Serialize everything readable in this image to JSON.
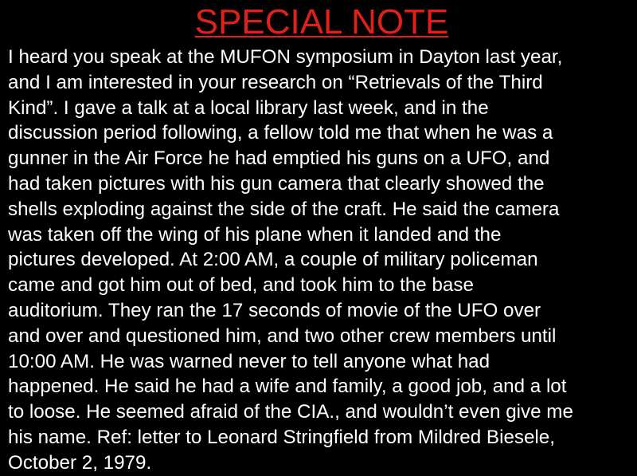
{
  "slide": {
    "title": "SPECIAL NOTE",
    "title_color": "#e0201a",
    "text_color": "#ffffff",
    "background": "#000000",
    "lines": [
      "I heard you speak at the MUFON symposium in Dayton last year,",
      "and I am interested in your research on “Retrievals of the Third",
      "Kind”. I gave a talk at a local library last week, and in the",
      "discussion period following, a fellow told me that when he was a",
      "gunner in the Air Force he had emptied his guns on a UFO, and",
      "had taken pictures with his gun camera that clearly showed the",
      "shells exploding against the side of the craft. He said the camera",
      "was taken off the wing of his plane when it landed and the",
      "pictures developed. At 2:00 AM, a couple of military policeman",
      "came and got him out of bed, and took him to the base",
      "auditorium. They ran the 17 seconds of movie of the UFO over",
      "and over and questioned him, and two other crew members until",
      "10:00 AM. He was warned never to tell anyone what had",
      "happened. He said he had a wife and family, a good job, and a lot",
      "to loose. He seemed afraid of the CIA., and wouldn’t even give me",
      "his name. Ref: letter to Leonard Stringfield from Mildred Biesele,",
      "October 2, 1979."
    ]
  }
}
